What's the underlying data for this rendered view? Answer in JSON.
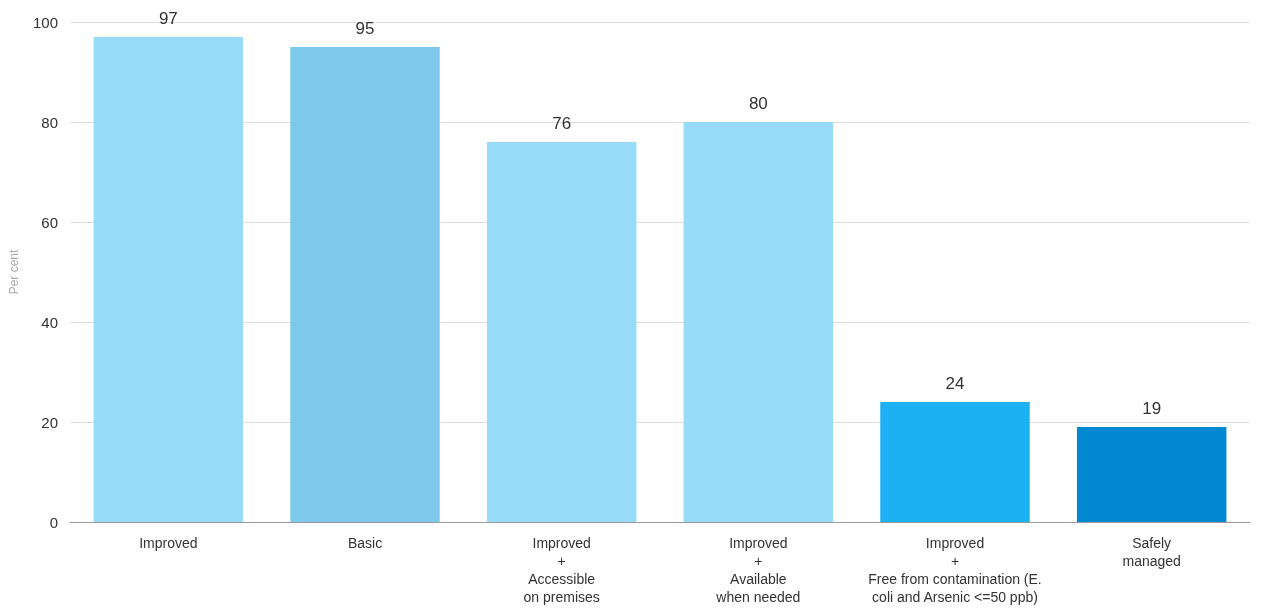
{
  "chart_data": {
    "type": "bar",
    "ylabel": "Per cent",
    "categories": [
      "Improved",
      "Basic",
      "Improved\n+\nAccessible\non premises",
      "Improved\n+\nAvailable\nwhen needed",
      "Improved\n+\nFree from contamination (E.\ncoli and Arsenic <=50 ppb)",
      "Safely\nmanaged"
    ],
    "values": [
      97,
      95,
      76,
      80,
      24,
      19
    ],
    "colors": [
      "#97dbf9",
      "#7fc9ec",
      "#97dbf9",
      "#97dbf9",
      "#1bb1f2",
      "#0288d1"
    ],
    "ylim": [
      0,
      100
    ],
    "yticks": [
      0,
      20,
      40,
      60,
      80,
      100
    ],
    "grid": "y",
    "data_labels": true
  }
}
